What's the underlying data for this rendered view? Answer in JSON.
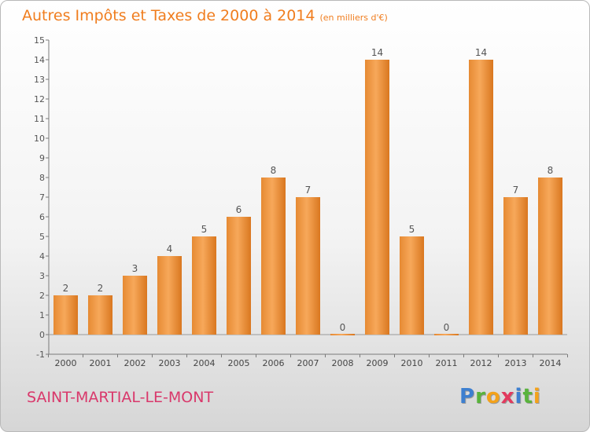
{
  "title": "Autres Impôts et Taxes de 2000 à 2014",
  "subtitle": "(en milliers d'€)",
  "city": "SAINT-MARTIAL-LE-MONT",
  "logo": {
    "text": "Proxiti",
    "letters": [
      "P",
      "r",
      "o",
      "x",
      "i",
      "t",
      "i"
    ]
  },
  "colors": {
    "title": "#f07d1e",
    "city": "#d9386b",
    "bar_light": "#f6a24f",
    "bar_dark": "#e07e26"
  },
  "chart_data": {
    "type": "bar",
    "title": "Autres Impôts et Taxes de 2000 à 2014",
    "subtitle": "(en milliers d'€)",
    "categories": [
      "2000",
      "2001",
      "2002",
      "2003",
      "2004",
      "2005",
      "2006",
      "2007",
      "2008",
      "2009",
      "2010",
      "2011",
      "2012",
      "2013",
      "2014"
    ],
    "values": [
      2,
      2,
      3,
      4,
      5,
      6,
      8,
      7,
      0,
      14,
      5,
      0,
      14,
      7,
      8
    ],
    "data_labels": [
      "2",
      "2",
      "3",
      "4",
      "5",
      "6",
      "8",
      "7",
      "0",
      "14",
      "5",
      "0",
      "14",
      "7",
      "8"
    ],
    "yticks": [
      "-1",
      "0",
      "1",
      "2",
      "3",
      "4",
      "5",
      "6",
      "7",
      "8",
      "9",
      "10",
      "11",
      "12",
      "13",
      "14",
      "15"
    ],
    "ylim": [
      -1,
      15
    ],
    "grid": false,
    "legend": "none"
  }
}
